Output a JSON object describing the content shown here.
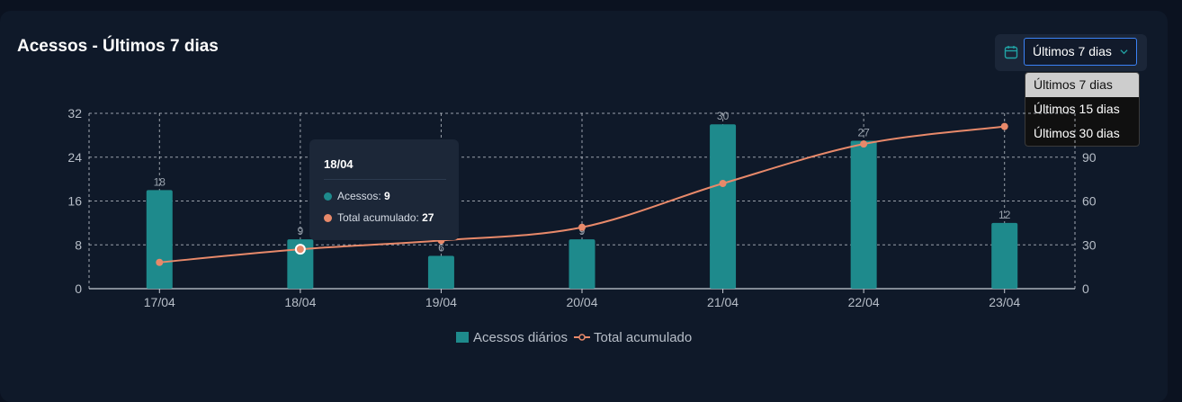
{
  "header": {
    "title": "Acessos - Últimos 7 dias"
  },
  "period_select": {
    "icon": "calendar-icon",
    "selected": "Últimos 7 dias",
    "options": [
      "Últimos 7 dias",
      "Últimos 15 dias",
      "Últimos 30 dias"
    ]
  },
  "tooltip": {
    "date": "18/04",
    "acessos_label": "Acessos:",
    "acessos_value": "9",
    "total_label": "Total acumulado:",
    "total_value": "27"
  },
  "colors": {
    "bar": "#1e8a8c",
    "line": "#e8896a",
    "grid": "#c8ced6",
    "axis_text": "#b7bec8"
  },
  "chart_data": {
    "type": "bar",
    "title": "",
    "categories": [
      "17/04",
      "18/04",
      "19/04",
      "20/04",
      "21/04",
      "22/04",
      "23/04"
    ],
    "series": [
      {
        "name": "Acessos diários",
        "type": "bar",
        "axis": "left",
        "values": [
          18,
          9,
          6,
          9,
          30,
          27,
          12
        ]
      },
      {
        "name": "Total acumulado",
        "type": "line",
        "axis": "right",
        "values": [
          18,
          27,
          33,
          42,
          72,
          99,
          111
        ]
      }
    ],
    "y_left": {
      "range": [
        0,
        32
      ],
      "ticks": [
        0,
        8,
        16,
        24,
        32
      ]
    },
    "y_right": {
      "range": [
        0,
        120
      ],
      "ticks": [
        0,
        30,
        60,
        90
      ]
    },
    "grid": true,
    "legend": "bottom"
  }
}
